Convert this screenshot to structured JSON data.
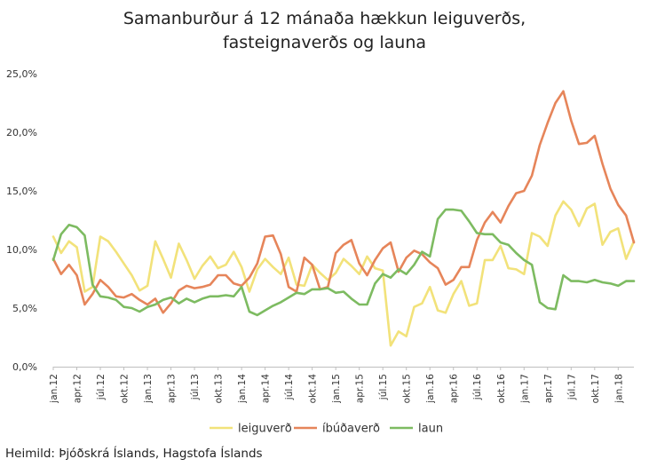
{
  "title_line1": "Samanburður á 12 mánaða hækkun leiguverðs,",
  "title_line2": "fasteignaverðs og launa",
  "source": "Heimild: Þjóðskrá Íslands, Hagstofa Íslands",
  "chart_data": {
    "type": "line",
    "title": "Samanburður á 12 mánaða hækkun leiguverðs, fasteignaverðs og launa",
    "ylim": [
      0,
      25
    ],
    "yticks": [
      "0,0%",
      "5,0%",
      "10,0%",
      "15,0%",
      "20,0%",
      "25,0%"
    ],
    "xticklabels": [
      "jan.12",
      "apr.12",
      "júl.12",
      "okt.12",
      "jan.13",
      "apr.13",
      "júl.13",
      "okt.13",
      "jan.14",
      "apr.14",
      "júl.14",
      "okt.14",
      "jan.15",
      "apr.15",
      "júl.15",
      "okt.15",
      "jan.16",
      "apr.16",
      "júl.16",
      "okt.16",
      "jan.17",
      "apr.17",
      "júl.17",
      "okt.17",
      "jan.18"
    ],
    "x_start": "2012-01",
    "x_end": "2018-03",
    "grid": false,
    "legend_position": "bottom",
    "series": [
      {
        "name": "leiguverð",
        "color": "#f2e27a",
        "values": [
          11.1,
          9.7,
          10.7,
          10.2,
          6.4,
          6.8,
          11.1,
          10.7,
          9.8,
          8.8,
          7.8,
          6.5,
          6.9,
          10.7,
          9.2,
          7.6,
          10.5,
          9.1,
          7.5,
          8.6,
          9.4,
          8.4,
          8.7,
          9.8,
          8.5,
          6.4,
          8.3,
          9.2,
          8.5,
          7.9,
          9.3,
          7.0,
          6.9,
          8.7,
          8.0,
          7.4,
          8.0,
          9.2,
          8.6,
          7.9,
          9.4,
          8.4,
          8.2,
          1.8,
          3.0,
          2.6,
          5.1,
          5.4,
          6.8,
          4.8,
          4.6,
          6.2,
          7.3,
          5.2,
          5.4,
          9.1,
          9.1,
          10.3,
          8.4,
          8.3,
          7.9,
          11.4,
          11.1,
          10.3,
          12.9,
          14.1,
          13.4,
          12.0,
          13.5,
          13.9,
          10.4,
          11.5,
          11.8,
          9.2,
          10.7
        ]
      },
      {
        "name": "íbúðaverð",
        "color": "#e6855a",
        "values": [
          9.2,
          7.9,
          8.7,
          7.8,
          5.3,
          6.2,
          7.4,
          6.8,
          6.0,
          5.9,
          6.2,
          5.7,
          5.3,
          5.8,
          4.6,
          5.4,
          6.5,
          6.9,
          6.7,
          6.8,
          7.0,
          7.8,
          7.8,
          7.1,
          6.9,
          7.6,
          8.8,
          11.1,
          11.2,
          9.6,
          6.8,
          6.4,
          9.3,
          8.7,
          6.6,
          6.8,
          9.7,
          10.4,
          10.8,
          8.8,
          7.8,
          9.1,
          10.1,
          10.6,
          8.1,
          9.3,
          9.9,
          9.6,
          8.9,
          8.4,
          7.0,
          7.4,
          8.5,
          8.5,
          10.8,
          12.3,
          13.2,
          12.3,
          13.7,
          14.8,
          15.0,
          16.3,
          18.9,
          20.8,
          22.5,
          23.5,
          21.0,
          19.0,
          19.1,
          19.7,
          17.3,
          15.2,
          13.8,
          12.9,
          10.6
        ]
      },
      {
        "name": "laun",
        "color": "#7dbb61",
        "values": [
          9.1,
          11.3,
          12.1,
          11.9,
          11.2,
          7.0,
          6.0,
          5.9,
          5.7,
          5.1,
          5.0,
          4.7,
          5.1,
          5.3,
          5.7,
          5.9,
          5.4,
          5.8,
          5.5,
          5.8,
          6.0,
          6.0,
          6.1,
          6.0,
          6.8,
          4.7,
          4.4,
          4.8,
          5.2,
          5.5,
          5.9,
          6.3,
          6.2,
          6.6,
          6.6,
          6.7,
          6.3,
          6.4,
          5.8,
          5.3,
          5.3,
          7.1,
          7.9,
          7.6,
          8.3,
          7.9,
          8.7,
          9.8,
          9.4,
          12.6,
          13.4,
          13.4,
          13.3,
          12.4,
          11.4,
          11.3,
          11.3,
          10.6,
          10.4,
          9.7,
          9.1,
          8.7,
          5.5,
          5.0,
          4.9,
          7.8,
          7.3,
          7.3,
          7.2,
          7.4,
          7.2,
          7.1,
          6.9,
          7.3,
          7.3
        ]
      }
    ]
  }
}
